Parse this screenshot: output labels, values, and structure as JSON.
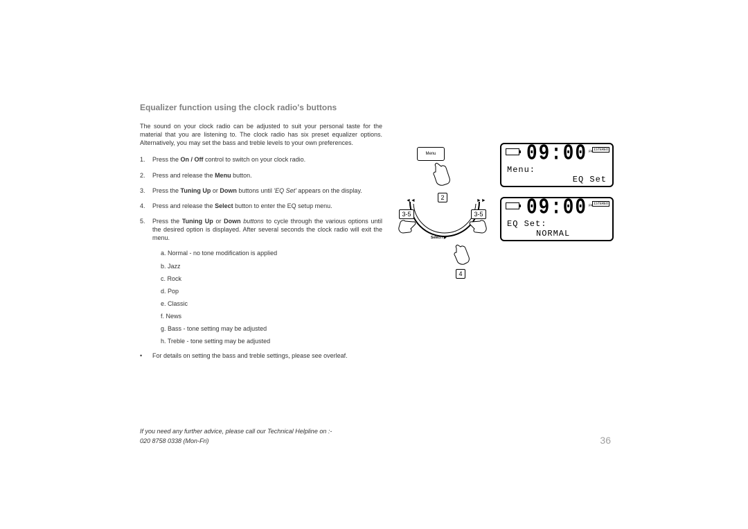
{
  "title": "Equalizer function using the clock radio's buttons",
  "intro": "The sound on your clock radio can be adjusted to suit your personal taste for the material that you are listening to. The clock radio has six preset equalizer options. Alternatively, you may set the bass and treble levels to your own preferences.",
  "steps": {
    "s1n": "1.",
    "s1": "Press the <b class='ctrl'>On / Off</b> control to switch on your clock radio.",
    "s2n": "2.",
    "s2": "Press and release the <b class='ctrl'>Menu</b> button.",
    "s3n": "3.",
    "s3": "Press the <b class='ctrl'>Tuning Up</b> or <b class='ctrl'>Down</b> buttons until <i class='term'>'EQ Set'</i> appears on the display.",
    "s4n": "4.",
    "s4": "Press and release the <b class='ctrl'>Select</b> button to enter the EQ setup menu.",
    "s5n": "5.",
    "s5": "Press the <b class='ctrl'>Tuning Up</b> or <b class='ctrl'>Down</b> <i class='term'>buttons</i> to cycle through the various options until the desired option is displayed. After several seconds the clock radio will exit the menu."
  },
  "sublist": {
    "a": "a. Normal - no tone modification is applied",
    "b": "b. Jazz",
    "c": "c. Rock",
    "d": "d. Pop",
    "e": "e. Classic",
    "f": "f.  News",
    "g": "g. Bass - tone setting may be adjusted",
    "h": "h. Treble - tone setting may be adjusted"
  },
  "bullet": "For details on setting the bass and treble settings, please see overleaf.",
  "footer": {
    "line1": "If you need any further advice, please call our Technical Helpline on :-",
    "line2": "020 8758 0338 (Mon-Fri)"
  },
  "page_number": "36",
  "lcd": {
    "time": "09:00",
    "fm": "FM",
    "stereo": "iSTEREO",
    "d1_line1": "Menu:",
    "d1_line2": "EQ Set",
    "d2_line1": "EQ Set:",
    "d2_line2": "NORMAL"
  },
  "diagram": {
    "menu_btn": "Menu",
    "label_2": "2",
    "label_35a": "3-5",
    "label_35b": "3-5",
    "label_4": "4",
    "select": "Select / ▶",
    "skip_l": "◄◄",
    "skip_r": "►►"
  }
}
